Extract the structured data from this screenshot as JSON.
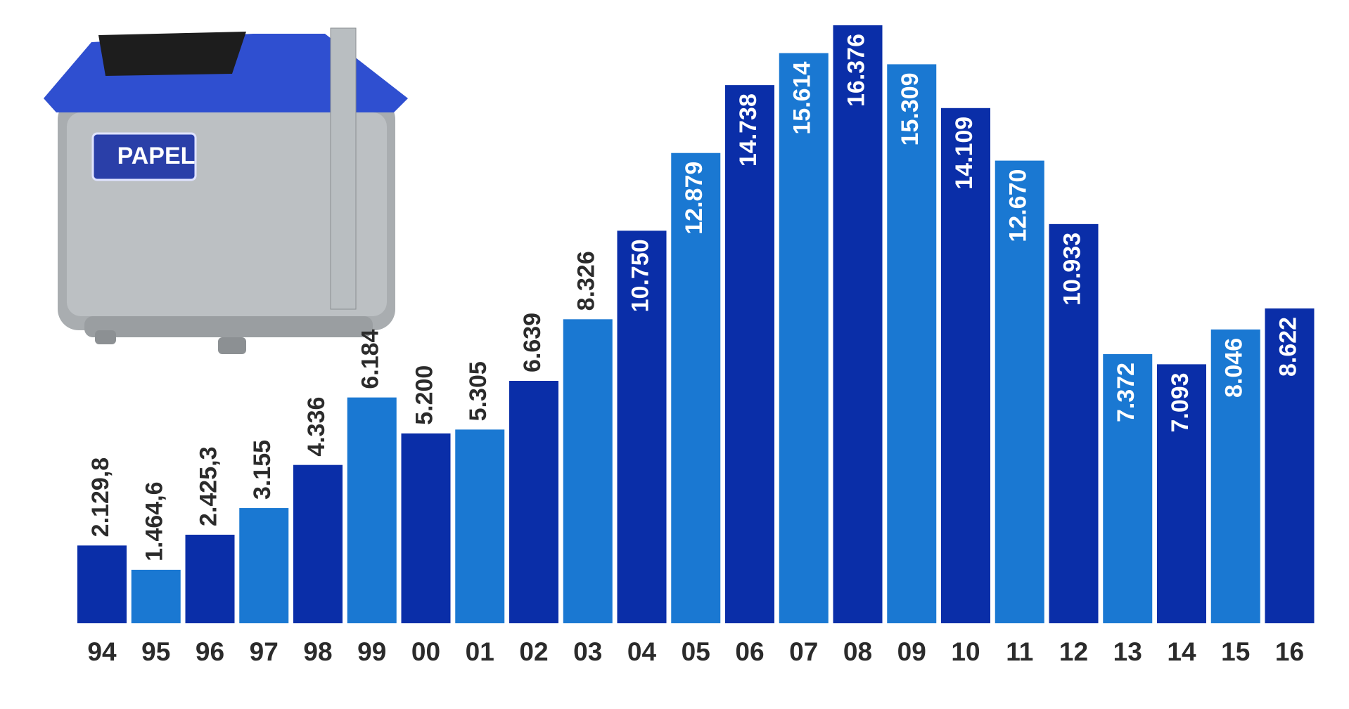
{
  "chart_data": {
    "type": "bar",
    "categories": [
      "94",
      "95",
      "96",
      "97",
      "98",
      "99",
      "00",
      "01",
      "02",
      "03",
      "04",
      "05",
      "06",
      "07",
      "08",
      "09",
      "10",
      "11",
      "12",
      "13",
      "14",
      "15",
      "16"
    ],
    "values": [
      2129.8,
      1464.6,
      2425.3,
      3155,
      4336,
      6184,
      5200,
      5305,
      6639,
      8326,
      10750,
      12879,
      14738,
      15614,
      16376,
      15309,
      14109,
      12670,
      10933,
      7372,
      7093,
      8046,
      8622
    ],
    "value_labels": [
      "2.129,8",
      "1.464,6",
      "2.425,3",
      "3.155",
      "4.336",
      "6.184",
      "5.200",
      "5.305",
      "6.639",
      "8.326",
      "10.750",
      "12.879",
      "14.738",
      "15.614",
      "16.376",
      "15.309",
      "14.109",
      "12.670",
      "10.933",
      "7.372",
      "7.093",
      "8.046",
      "8.622"
    ],
    "colors": [
      "#0a2ea8",
      "#1a78d2"
    ],
    "image_text": "PAPEL"
  }
}
